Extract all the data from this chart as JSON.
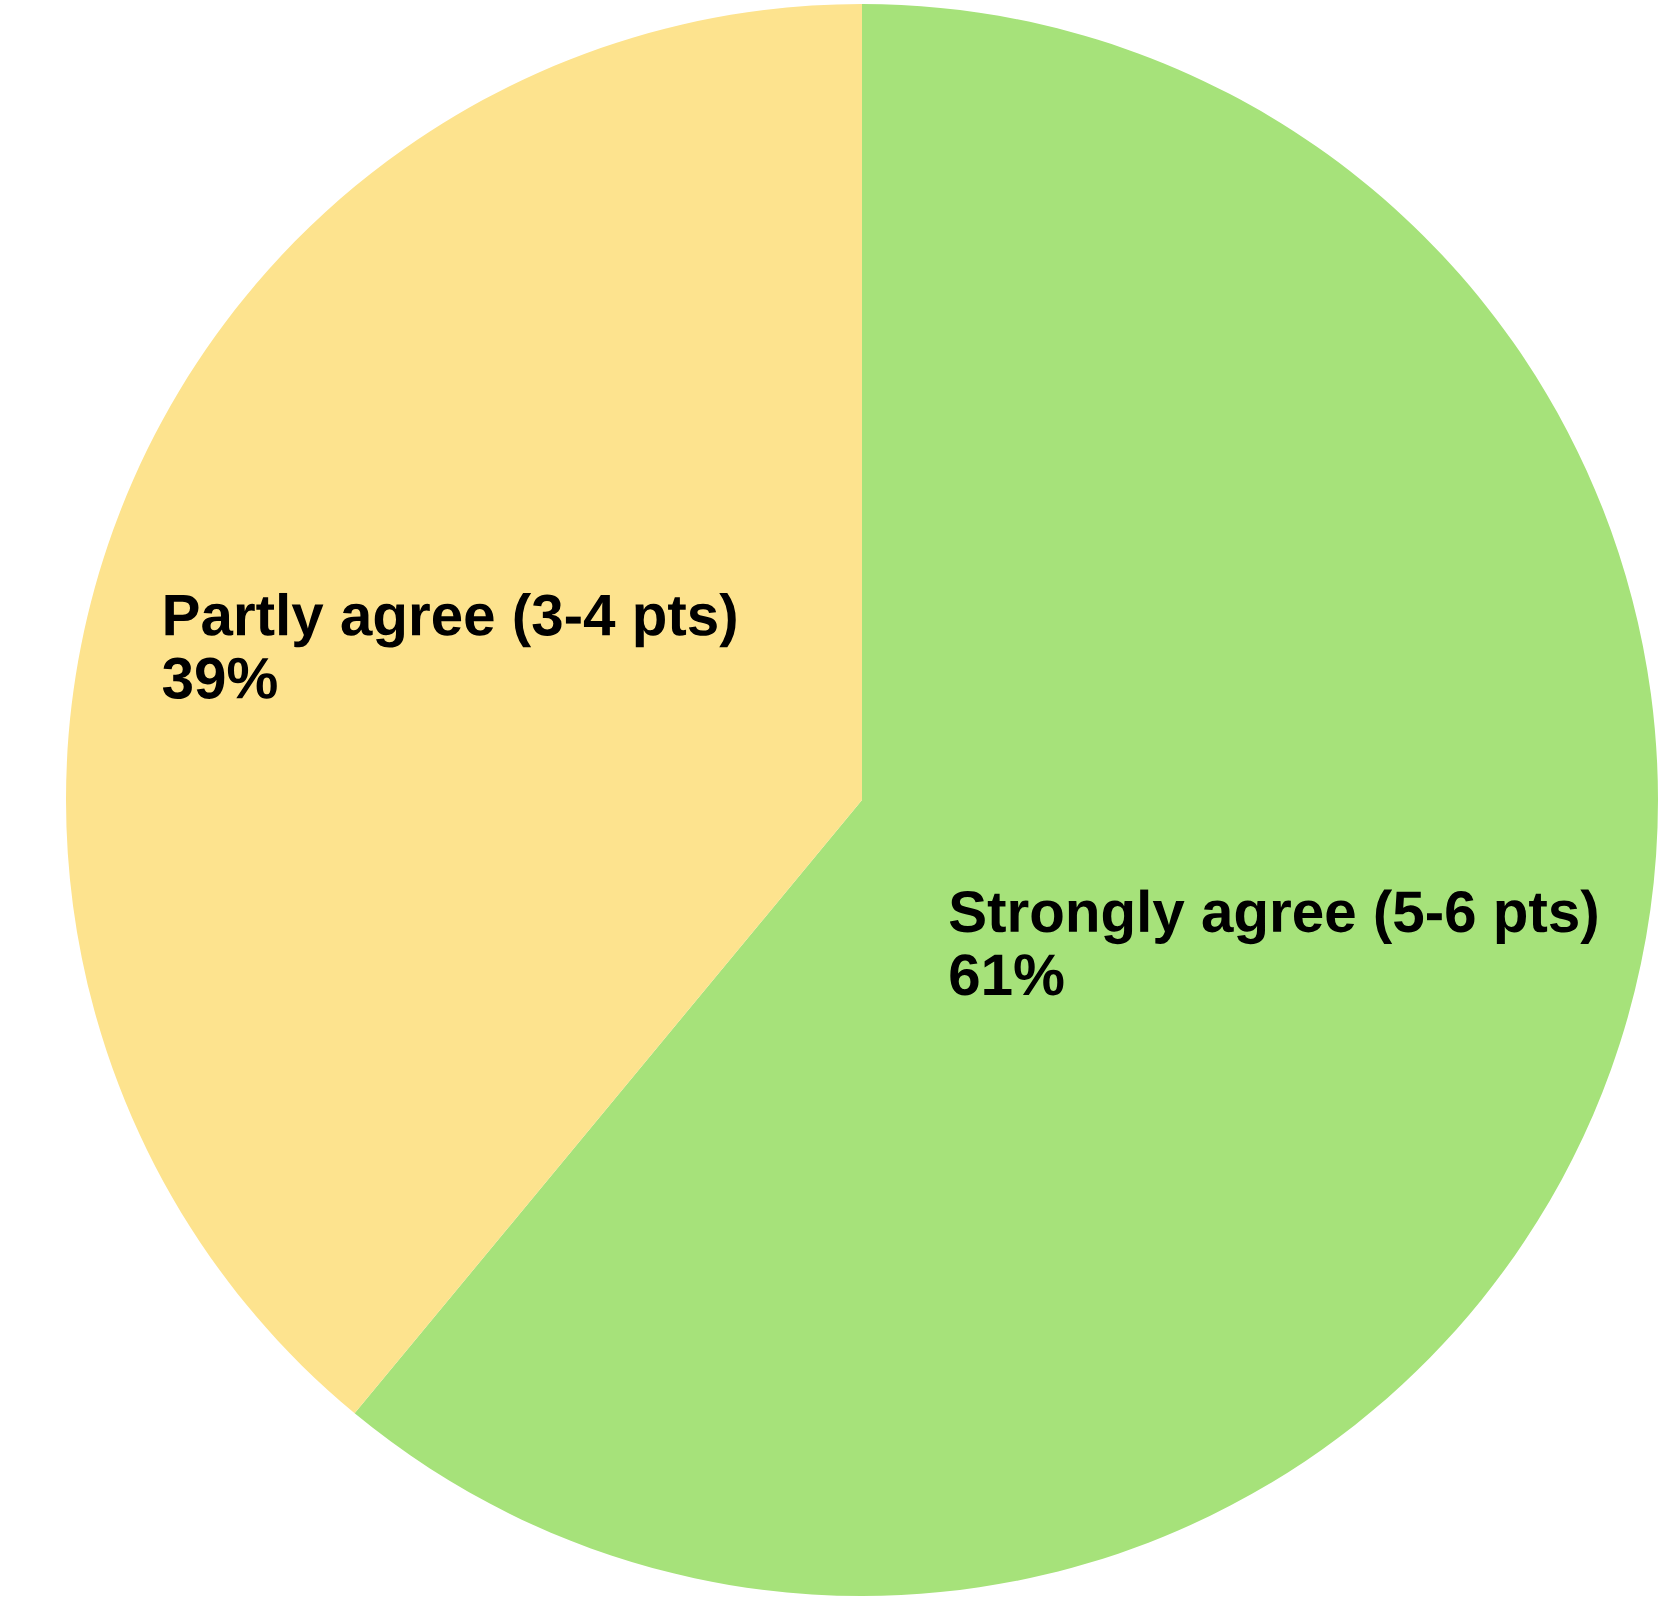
{
  "chart_data": {
    "type": "pie",
    "categories": [
      "Strongly agree (5-6 pts)",
      "Partly agree (3-4 pts)"
    ],
    "values": [
      61,
      39
    ],
    "value_labels": [
      "61%",
      "39%"
    ],
    "colors": [
      "#a6e27a",
      "#fde38e"
    ],
    "legend": false
  }
}
